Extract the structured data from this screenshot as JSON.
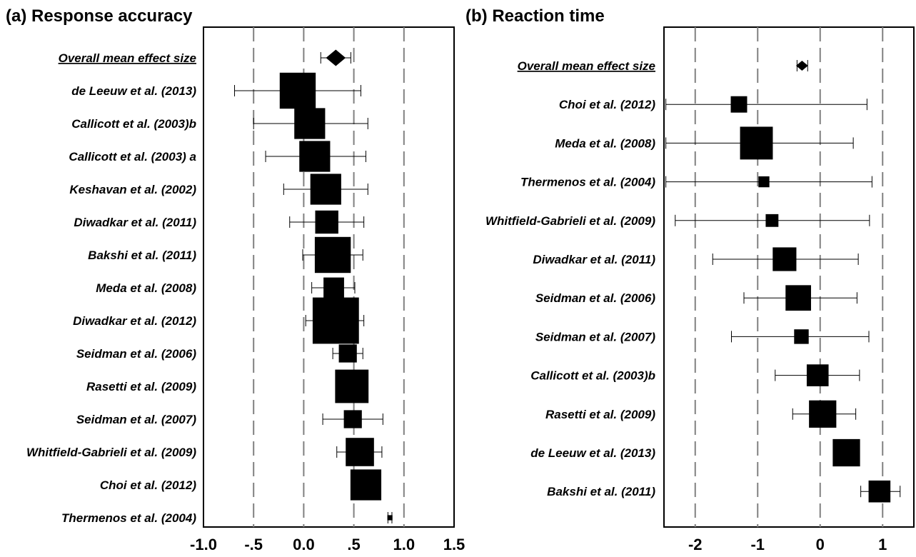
{
  "chart_data": [
    {
      "type": "forest",
      "title": "(a) Response accuracy",
      "xlim": [
        -1.0,
        1.5
      ],
      "x_ticks": [
        "-1.0",
        "-.5",
        "0.0",
        ".5",
        "1.0",
        "1.5"
      ],
      "reference_lines": [
        -0.5,
        0.0,
        0.5,
        1.0
      ],
      "rows": [
        {
          "label": "Overall mean effect size",
          "effect": 0.32,
          "ci": [
            0.17,
            0.47
          ],
          "weight": 0.14,
          "marker": "diamond"
        },
        {
          "label": "de Leeuw et al. (2013)",
          "effect": -0.06,
          "ci": [
            -0.69,
            0.57
          ],
          "weight": 0.14,
          "marker": "square"
        },
        {
          "label": "Callicott et al. (2003)b",
          "effect": 0.06,
          "ci": [
            -0.5,
            0.64
          ],
          "weight": 0.12,
          "marker": "square"
        },
        {
          "label": "Callicott et al. (2003) a",
          "effect": 0.11,
          "ci": [
            -0.38,
            0.62
          ],
          "weight": 0.12,
          "marker": "square"
        },
        {
          "label": "Keshavan et al. (2002)",
          "effect": 0.22,
          "ci": [
            -0.2,
            0.64
          ],
          "weight": 0.12,
          "marker": "square"
        },
        {
          "label": "Diwadkar et al. (2011)",
          "effect": 0.23,
          "ci": [
            -0.14,
            0.6
          ],
          "weight": 0.09,
          "marker": "square"
        },
        {
          "label": "Bakshi et al. (2011)",
          "effect": 0.29,
          "ci": [
            -0.01,
            0.59
          ],
          "weight": 0.14,
          "marker": "square"
        },
        {
          "label": "Meda et al. (2008)",
          "effect": 0.3,
          "ci": [
            0.08,
            0.51
          ],
          "weight": 0.08,
          "marker": "square"
        },
        {
          "label": "Diwadkar et al. (2012)",
          "effect": 0.32,
          "ci": [
            0.02,
            0.6
          ],
          "weight": 0.18,
          "marker": "square"
        },
        {
          "label": "Seidman et al. (2006)",
          "effect": 0.44,
          "ci": [
            0.29,
            0.59
          ],
          "weight": 0.07,
          "marker": "square"
        },
        {
          "label": "Rasetti et al. (2009)",
          "effect": 0.48,
          "ci": [
            0.36,
            0.61
          ],
          "weight": 0.13,
          "marker": "square"
        },
        {
          "label": "Seidman et al. (2007)",
          "effect": 0.49,
          "ci": [
            0.19,
            0.79
          ],
          "weight": 0.07,
          "marker": "square"
        },
        {
          "label": "Whitfield-Gabrieli et al. (2009)",
          "effect": 0.56,
          "ci": [
            0.33,
            0.78
          ],
          "weight": 0.11,
          "marker": "square"
        },
        {
          "label": "Choi et al. (2012)",
          "effect": 0.62,
          "ci": [
            0.51,
            0.73
          ],
          "weight": 0.12,
          "marker": "square"
        },
        {
          "label": "Thermenos et al. (2004)",
          "effect": 0.86,
          "ci": [
            0.84,
            0.88
          ],
          "weight": 0.02,
          "marker": "square"
        }
      ]
    },
    {
      "type": "forest",
      "title": "(b) Reaction time",
      "xlim": [
        -2.5,
        1.5
      ],
      "x_ticks": [
        "-2",
        "-1",
        "0",
        "1"
      ],
      "reference_lines": [
        -2,
        -1,
        0,
        1
      ],
      "rows": [
        {
          "label": "Overall mean effect size",
          "effect": -0.29,
          "ci": [
            -0.37,
            -0.2
          ],
          "weight": 0.05,
          "marker": "diamond"
        },
        {
          "label": "Choi et al. (2012)",
          "effect": -1.3,
          "ci": [
            -2.47,
            0.75
          ],
          "weight": 0.09,
          "marker": "square"
        },
        {
          "label": "Meda et al. (2008)",
          "effect": -1.02,
          "ci": [
            -2.47,
            0.53
          ],
          "weight": 0.18,
          "marker": "square"
        },
        {
          "label": "Thermenos et al. (2004)",
          "effect": -0.9,
          "ci": [
            -2.47,
            0.83
          ],
          "weight": 0.06,
          "marker": "square"
        },
        {
          "label": "Whitfield-Gabrieli et al. (2009)",
          "effect": -0.77,
          "ci": [
            -2.32,
            0.79
          ],
          "weight": 0.07,
          "marker": "square"
        },
        {
          "label": "Diwadkar et al. (2011)",
          "effect": -0.57,
          "ci": [
            -1.72,
            0.61
          ],
          "weight": 0.13,
          "marker": "square"
        },
        {
          "label": "Seidman et al. (2006)",
          "effect": -0.35,
          "ci": [
            -1.22,
            0.59
          ],
          "weight": 0.14,
          "marker": "square"
        },
        {
          "label": "Seidman et al. (2007)",
          "effect": -0.3,
          "ci": [
            -1.42,
            0.78
          ],
          "weight": 0.08,
          "marker": "square"
        },
        {
          "label": "Callicott et al. (2003)b",
          "effect": -0.04,
          "ci": [
            -0.72,
            0.63
          ],
          "weight": 0.12,
          "marker": "square"
        },
        {
          "label": "Rasetti et al. (2009)",
          "effect": 0.04,
          "ci": [
            -0.44,
            0.57
          ],
          "weight": 0.15,
          "marker": "square"
        },
        {
          "label": "de Leeuw et al. (2013)",
          "effect": 0.42,
          "ci": [
            0.42,
            0.42
          ],
          "weight": 0.15,
          "marker": "square"
        },
        {
          "label": "Bakshi et al. (2011)",
          "effect": 0.95,
          "ci": [
            0.65,
            1.28
          ],
          "weight": 0.12,
          "marker": "square"
        }
      ]
    }
  ]
}
